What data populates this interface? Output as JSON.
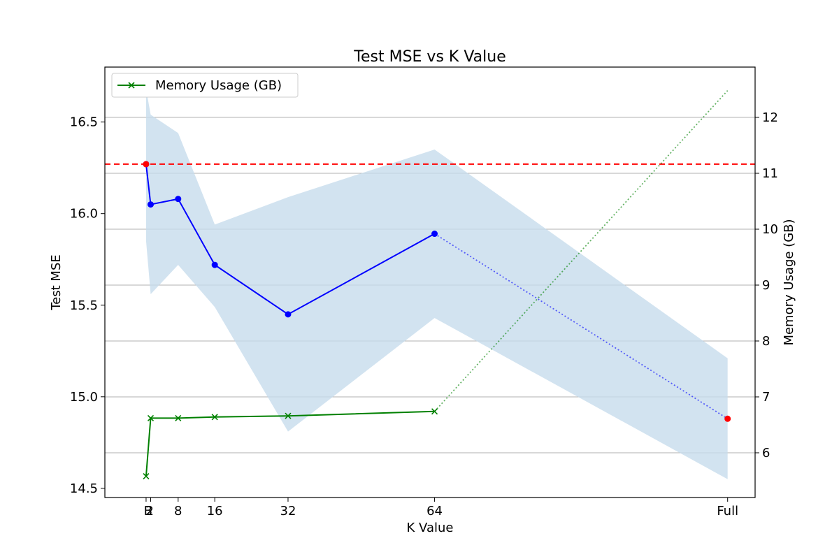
{
  "chart_data": {
    "type": "line",
    "title": "Test MSE vs K Value",
    "xlabel": "K Value",
    "ylabel": "Test MSE",
    "y2label": "Memory Usage (GB)",
    "x_ticks": [
      "B",
      "2",
      "8",
      "16",
      "32",
      "64",
      "Full"
    ],
    "x_tick_positions": [
      1,
      2,
      8,
      16,
      32,
      64,
      128
    ],
    "xlim": [
      -8,
      134
    ],
    "ylim": [
      14.45,
      16.8
    ],
    "y_ticks": [
      14.5,
      15.0,
      15.5,
      16.0,
      16.5
    ],
    "y_tick_labels": [
      "14.5",
      "15.0",
      "15.5",
      "16.0",
      "16.5"
    ],
    "y2lim": [
      5.2,
      12.9
    ],
    "y2_ticks": [
      6,
      7,
      8,
      9,
      10,
      11,
      12
    ],
    "y2_tick_labels": [
      "6",
      "7",
      "8",
      "9",
      "10",
      "11",
      "12"
    ],
    "grid": "horizontal lines at right-axis ticks",
    "legend": {
      "position": "top-left",
      "entries": [
        "Memory Usage (GB)"
      ]
    },
    "series": [
      {
        "axis": "left",
        "color": "#0000ff",
        "style": "solid",
        "marker": "circle",
        "x": [
          1,
          2,
          8,
          16,
          32,
          64
        ],
        "values": [
          16.27,
          16.05,
          16.08,
          15.72,
          15.45,
          15.89
        ]
      },
      {
        "axis": "left",
        "color": "#0000ff",
        "style": "dotted",
        "marker": "none",
        "x": [
          64,
          128
        ],
        "values": [
          15.89,
          14.88
        ]
      },
      {
        "axis": "left",
        "color": "#ff0000",
        "style": "none",
        "marker": "circle",
        "x": [
          1,
          128
        ],
        "values": [
          16.27,
          14.88
        ]
      },
      {
        "name": "Memory Usage (GB)",
        "axis": "right",
        "color": "#008000",
        "style": "solid",
        "marker": "x",
        "x": [
          1,
          2,
          8,
          16,
          32,
          64
        ],
        "values": [
          5.58,
          6.62,
          6.62,
          6.64,
          6.66,
          6.74
        ]
      },
      {
        "axis": "right",
        "color": "#008000",
        "style": "dotted",
        "marker": "none",
        "x": [
          64,
          128
        ],
        "values": [
          6.74,
          12.48
        ]
      }
    ],
    "band": {
      "axis": "left",
      "color": "#c7dcec",
      "x": [
        1,
        2,
        8,
        16,
        32,
        64,
        128
      ],
      "upper": [
        16.68,
        16.54,
        16.44,
        15.94,
        16.09,
        16.35,
        15.21
      ],
      "lower": [
        15.85,
        15.56,
        15.72,
        15.49,
        14.81,
        15.43,
        14.55
      ]
    },
    "hline": {
      "axis": "left",
      "y": 16.27,
      "color": "#ff0000",
      "style": "dashed"
    }
  }
}
